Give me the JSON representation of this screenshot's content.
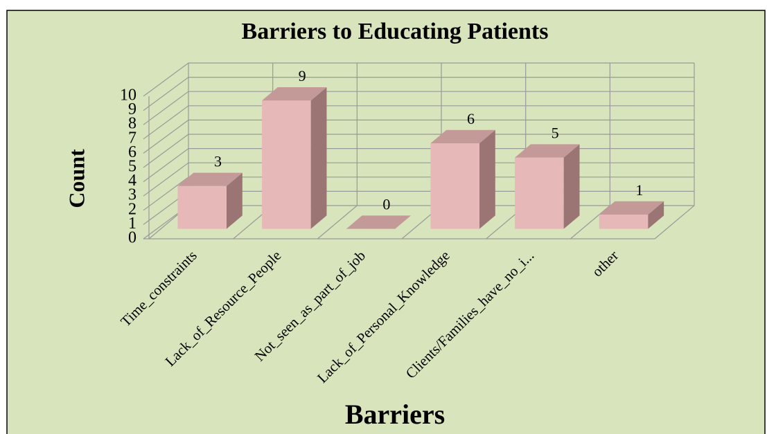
{
  "chart_data": {
    "type": "bar3d",
    "title": "Barriers to Educating Patients",
    "xlabel": "Barriers",
    "ylabel": "Count",
    "categories": [
      "Time_constraints",
      "Lack_of_Resource_People",
      "Not_seen_as_part_of_job",
      "Lack_of_Personal_Knowledge",
      "Clients/Families_have_no_i...",
      "other"
    ],
    "values": [
      3,
      9,
      0,
      6,
      5,
      1
    ],
    "color": "#e6b8b7",
    "ylim": [
      0,
      10
    ],
    "yticks": [
      0,
      1,
      2,
      3,
      4,
      5,
      6,
      7,
      8,
      9,
      10
    ],
    "grid": true
  }
}
